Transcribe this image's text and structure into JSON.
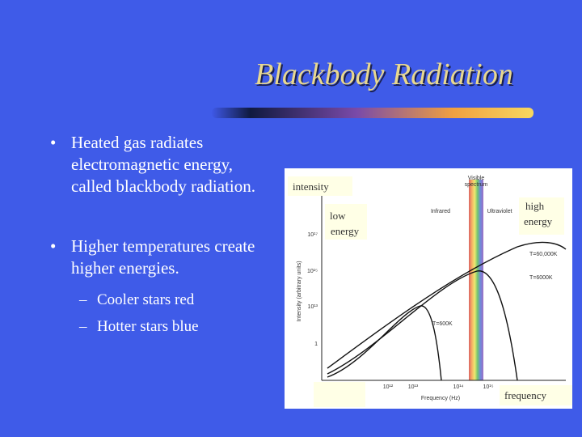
{
  "title": "Blackbody Radiation",
  "bullets": [
    {
      "lines": [
        "Heated gas radiates",
        "electromagnetic energy,",
        "called blackbody radiation."
      ]
    },
    {
      "lines": [
        "Higher temperatures create",
        "higher energies."
      ],
      "sub": [
        "Cooler stars red",
        "Hotter stars blue"
      ]
    }
  ],
  "figure": {
    "labels": {
      "intensity": "intensity",
      "low": [
        "low",
        "energy"
      ],
      "high": [
        "high",
        "energy"
      ],
      "frequency": "frequency"
    },
    "band": {
      "visible": [
        "Visible",
        "spectrum"
      ],
      "infrared": "Infrared",
      "ultraviolet": "Ultraviolet"
    },
    "curves": [
      "T=60,000K",
      "T=6000K",
      "T=600K"
    ],
    "y_axis_title": "Intensity (arbitrary units)",
    "x_axis_title": "Frequency (Hz)",
    "y_tick_labels": [
      "10¹⁷",
      "10¹⁵",
      "10¹³",
      "1"
    ],
    "x_tick_labels": [
      "10¹²",
      "10¹³",
      "10¹⁴",
      "10¹⁵"
    ]
  }
}
